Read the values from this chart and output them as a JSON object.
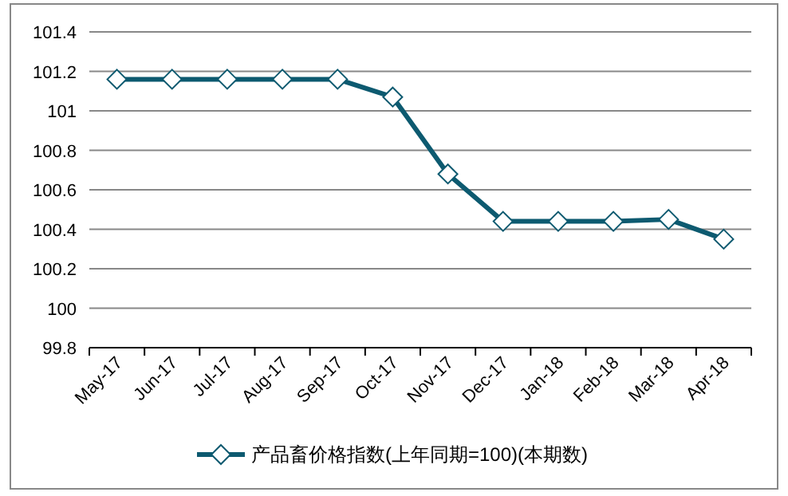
{
  "chart_data": {
    "type": "line",
    "categories": [
      "May-17",
      "Jun-17",
      "Jul-17",
      "Aug-17",
      "Sep-17",
      "Oct-17",
      "Nov-17",
      "Dec-17",
      "Jan-18",
      "Feb-18",
      "Mar-18",
      "Apr-18"
    ],
    "series": [
      {
        "name": "产品畜价格指数(上年同期=100)(本期数)",
        "color": "#0d5a70",
        "values": [
          101.16,
          101.16,
          101.16,
          101.16,
          101.16,
          101.07,
          100.68,
          100.44,
          100.44,
          100.44,
          100.45,
          100.35
        ]
      }
    ],
    "ylim": [
      99.8,
      101.4
    ],
    "yticks": [
      99.8,
      100,
      100.2,
      100.4,
      100.6,
      100.8,
      101,
      101.2,
      101.4
    ],
    "grid": "y",
    "legend": "bottom",
    "marker": "diamond",
    "line_style": "solid"
  }
}
